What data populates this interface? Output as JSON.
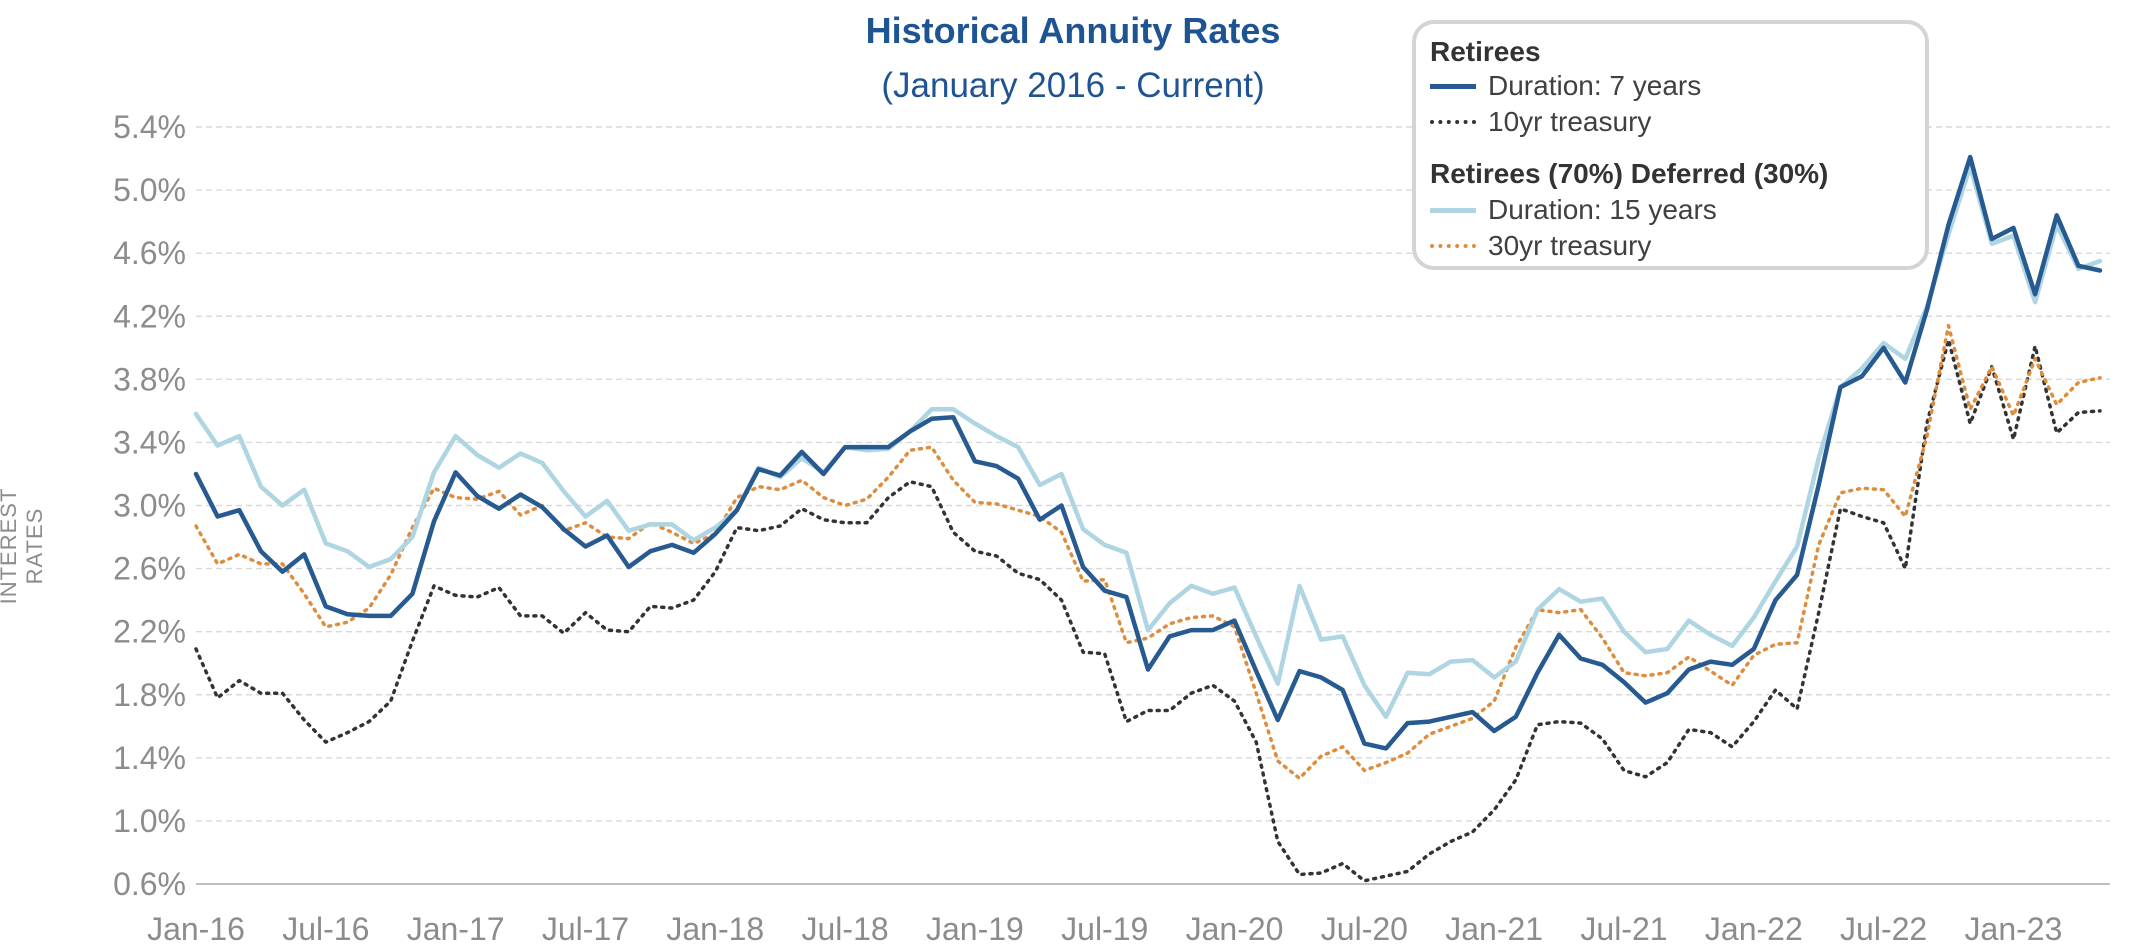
{
  "colors": {
    "retirees_7y": "#265a91",
    "blend_15y": "#aed5e1",
    "treasury_10y": "#333333",
    "treasury_30y": "#de8d3f",
    "title": "#1f5493",
    "axis_text": "#8c8c8c",
    "grid": "#d9d9d9"
  },
  "chart_data": {
    "type": "line",
    "title": "Historical Annuity Rates",
    "subtitle": "(January 2016 - Current)",
    "xlabel": "",
    "ylabel": "INTEREST RATES",
    "ylim": [
      0.006,
      0.054
    ],
    "y_ticks": [
      "5.4%",
      "5.0%",
      "4.6%",
      "4.2%",
      "3.8%",
      "3.4%",
      "3.0%",
      "2.6%",
      "2.2%",
      "1.8%",
      "1.4%",
      "1.0%",
      "0.6%"
    ],
    "x_ticks": [
      "Jan-16",
      "Jul-16",
      "Jan-17",
      "Jul-17",
      "Jan-18",
      "Jul-18",
      "Jan-19",
      "Jul-19",
      "Jan-20",
      "Jul-20",
      "Jan-21",
      "Jul-21",
      "Jan-22",
      "Jul-22",
      "Jan-23"
    ],
    "x_start": "Jan-16",
    "grid": "horizontal",
    "legend_position": "top-right",
    "legend": {
      "group1": "Retirees",
      "group2": "Retirees (70%) Deferred (30%)"
    },
    "series": [
      {
        "name": "Duration: 7 years",
        "style": "solid",
        "values": [
          3.2,
          2.93,
          2.97,
          2.71,
          2.58,
          2.69,
          2.36,
          2.31,
          2.3,
          2.3,
          2.44,
          2.9,
          3.21,
          3.06,
          2.98,
          3.07,
          2.99,
          2.85,
          2.74,
          2.81,
          2.61,
          2.71,
          2.75,
          2.7,
          2.82,
          2.97,
          3.23,
          3.19,
          3.34,
          3.2,
          3.37,
          3.37,
          3.37,
          3.47,
          3.55,
          3.56,
          3.28,
          3.25,
          3.17,
          2.91,
          3.0,
          2.61,
          2.46,
          2.42,
          1.96,
          2.17,
          2.21,
          2.21,
          2.27,
          1.95,
          1.64,
          1.95,
          1.91,
          1.83,
          1.49,
          1.46,
          1.62,
          1.63,
          1.66,
          1.69,
          1.57,
          1.66,
          1.94,
          2.18,
          2.03,
          1.99,
          1.88,
          1.75,
          1.81,
          1.96,
          2.01,
          1.99,
          2.09,
          2.4,
          2.56,
          3.13,
          3.75,
          3.82,
          4.0,
          3.78,
          4.24,
          4.78,
          5.21,
          4.69,
          4.76,
          4.34,
          4.84,
          4.52,
          4.49
        ]
      },
      {
        "name": "10yr treasury",
        "style": "dotted",
        "values": [
          2.09,
          1.78,
          1.89,
          1.81,
          1.81,
          1.64,
          1.5,
          1.56,
          1.63,
          1.76,
          2.14,
          2.49,
          2.43,
          2.42,
          2.48,
          2.3,
          2.3,
          2.19,
          2.32,
          2.21,
          2.2,
          2.36,
          2.35,
          2.4,
          2.58,
          2.86,
          2.84,
          2.87,
          2.98,
          2.91,
          2.89,
          2.89,
          3.05,
          3.15,
          3.12,
          2.83,
          2.71,
          2.68,
          2.57,
          2.53,
          2.4,
          2.07,
          2.06,
          1.63,
          1.7,
          1.7,
          1.81,
          1.86,
          1.76,
          1.5,
          0.87,
          0.66,
          0.67,
          0.73,
          0.62,
          0.65,
          0.68,
          0.79,
          0.87,
          0.93,
          1.07,
          1.26,
          1.61,
          1.63,
          1.62,
          1.52,
          1.32,
          1.28,
          1.37,
          1.58,
          1.56,
          1.47,
          1.63,
          1.83,
          1.71,
          2.32,
          2.98,
          2.93,
          2.89,
          2.6,
          3.52,
          4.05,
          3.52,
          3.88,
          3.42,
          4.01,
          3.46,
          3.59,
          3.6
        ]
      },
      {
        "name": "Duration: 15 years",
        "style": "solid",
        "values": [
          3.58,
          3.38,
          3.44,
          3.12,
          3.0,
          3.1,
          2.76,
          2.71,
          2.61,
          2.66,
          2.8,
          3.21,
          3.44,
          3.32,
          3.24,
          3.33,
          3.27,
          3.09,
          2.93,
          3.03,
          2.84,
          2.88,
          2.88,
          2.78,
          2.86,
          2.97,
          3.24,
          3.18,
          3.3,
          3.21,
          3.37,
          3.35,
          3.36,
          3.47,
          3.61,
          3.61,
          3.52,
          3.44,
          3.37,
          3.13,
          3.2,
          2.85,
          2.75,
          2.7,
          2.21,
          2.38,
          2.49,
          2.44,
          2.48,
          2.17,
          1.87,
          2.49,
          2.15,
          2.17,
          1.86,
          1.66,
          1.94,
          1.93,
          2.01,
          2.02,
          1.91,
          2.01,
          2.34,
          2.47,
          2.39,
          2.41,
          2.2,
          2.07,
          2.09,
          2.27,
          2.18,
          2.11,
          2.29,
          2.52,
          2.74,
          3.3,
          3.75,
          3.87,
          4.03,
          3.93,
          4.26,
          4.72,
          5.15,
          4.66,
          4.71,
          4.29,
          4.78,
          4.5,
          4.55
        ]
      },
      {
        "name": "30yr treasury",
        "style": "dotted",
        "values": [
          2.87,
          2.63,
          2.69,
          2.63,
          2.63,
          2.44,
          2.23,
          2.26,
          2.35,
          2.56,
          2.86,
          3.11,
          3.05,
          3.04,
          3.09,
          2.94,
          3.0,
          2.84,
          2.89,
          2.8,
          2.79,
          2.89,
          2.83,
          2.76,
          2.82,
          3.05,
          3.12,
          3.1,
          3.16,
          3.05,
          3.0,
          3.04,
          3.18,
          3.35,
          3.37,
          3.16,
          3.02,
          3.01,
          2.97,
          2.93,
          2.83,
          2.52,
          2.53,
          2.13,
          2.16,
          2.25,
          2.29,
          2.3,
          2.23,
          1.81,
          1.38,
          1.27,
          1.41,
          1.47,
          1.32,
          1.37,
          1.43,
          1.55,
          1.6,
          1.65,
          1.76,
          2.1,
          2.34,
          2.32,
          2.34,
          2.16,
          1.94,
          1.92,
          1.94,
          2.04,
          1.95,
          1.86,
          2.05,
          2.12,
          2.13,
          2.75,
          3.08,
          3.11,
          3.1,
          2.93,
          3.44,
          4.14,
          3.61,
          3.88,
          3.57,
          3.93,
          3.64,
          3.78,
          3.81
        ]
      }
    ]
  }
}
